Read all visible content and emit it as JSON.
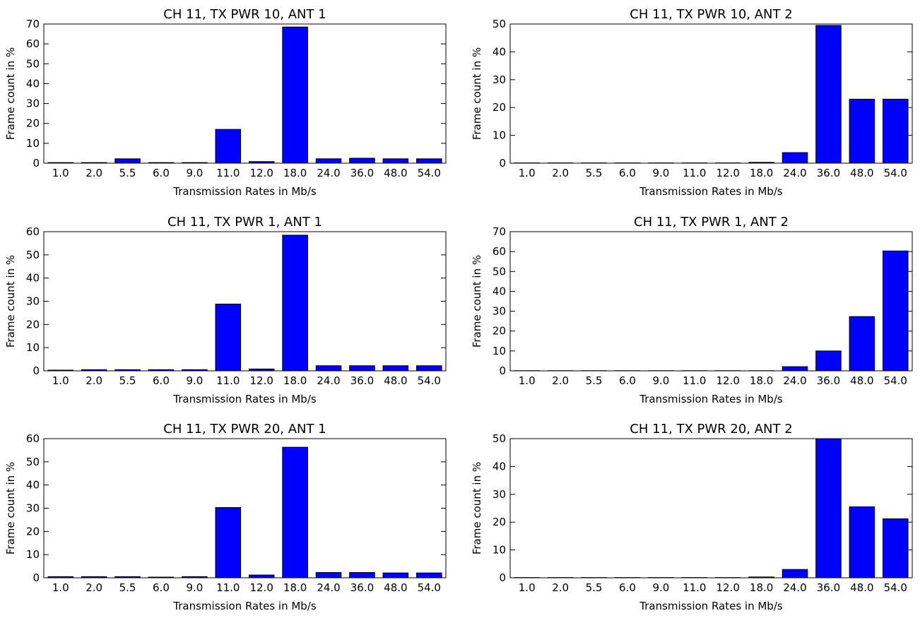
{
  "colors": {
    "bar": "#0000ff",
    "edge": "#000000",
    "background": "#ffffff"
  },
  "chart_data": [
    {
      "type": "bar",
      "title": "CH 11, TX PWR 10, ANT 1",
      "xlabel": "Transmission Rates in Mb/s",
      "ylabel": "Frame count in %",
      "ylim": [
        0,
        70
      ],
      "yticks": [
        0,
        10,
        20,
        30,
        40,
        50,
        60,
        70
      ],
      "categories": [
        "1.0",
        "2.0",
        "5.5",
        "6.0",
        "9.0",
        "11.0",
        "12.0",
        "18.0",
        "24.0",
        "36.0",
        "48.0",
        "54.0"
      ],
      "values": [
        0.3,
        0.3,
        2.2,
        0.3,
        0.3,
        17.0,
        0.8,
        68.5,
        2.2,
        2.5,
        2.2,
        2.2
      ],
      "grid": false
    },
    {
      "type": "bar",
      "title": "CH 11, TX PWR 10, ANT 2",
      "xlabel": "Transmission Rates in Mb/s",
      "ylabel": "Frame count in %",
      "ylim": [
        0,
        50
      ],
      "yticks": [
        0,
        10,
        20,
        30,
        40,
        50
      ],
      "categories": [
        "1.0",
        "2.0",
        "5.5",
        "6.0",
        "9.0",
        "11.0",
        "12.0",
        "18.0",
        "24.0",
        "36.0",
        "48.0",
        "54.0"
      ],
      "values": [
        0.1,
        0.1,
        0.1,
        0.1,
        0.1,
        0.1,
        0.1,
        0.3,
        3.8,
        49.5,
        23.0,
        23.0
      ],
      "grid": false
    },
    {
      "type": "bar",
      "title": "CH 11, TX PWR 1, ANT 1",
      "xlabel": "Transmission Rates in Mb/s",
      "ylabel": "Frame count in %",
      "ylim": [
        0,
        60
      ],
      "yticks": [
        0,
        10,
        20,
        30,
        40,
        50,
        60
      ],
      "categories": [
        "1.0",
        "2.0",
        "5.5",
        "6.0",
        "9.0",
        "11.0",
        "12.0",
        "18.0",
        "24.0",
        "36.0",
        "48.0",
        "54.0"
      ],
      "values": [
        0.3,
        0.5,
        0.5,
        0.5,
        0.5,
        28.8,
        0.8,
        58.5,
        2.2,
        2.2,
        2.2,
        2.2
      ],
      "grid": false
    },
    {
      "type": "bar",
      "title": "CH 11, TX PWR 1, ANT 2",
      "xlabel": "Transmission Rates in Mb/s",
      "ylabel": "Frame count in %",
      "ylim": [
        0,
        70
      ],
      "yticks": [
        0,
        10,
        20,
        30,
        40,
        50,
        60,
        70
      ],
      "categories": [
        "1.0",
        "2.0",
        "5.5",
        "6.0",
        "9.0",
        "11.0",
        "12.0",
        "18.0",
        "24.0",
        "36.0",
        "48.0",
        "54.0"
      ],
      "values": [
        0.1,
        0.1,
        0.1,
        0.1,
        0.1,
        0.1,
        0.1,
        0.1,
        2.1,
        10.0,
        27.3,
        60.3
      ],
      "grid": false
    },
    {
      "type": "bar",
      "title": "CH 11, TX PWR 20, ANT 1",
      "xlabel": "Transmission Rates in Mb/s",
      "ylabel": "Frame count in %",
      "ylim": [
        0,
        60
      ],
      "yticks": [
        0,
        10,
        20,
        30,
        40,
        50,
        60
      ],
      "categories": [
        "1.0",
        "2.0",
        "5.5",
        "6.0",
        "9.0",
        "11.0",
        "12.0",
        "18.0",
        "24.0",
        "36.0",
        "48.0",
        "54.0"
      ],
      "values": [
        0.5,
        0.5,
        0.5,
        0.3,
        0.5,
        30.3,
        1.2,
        56.3,
        2.3,
        2.3,
        2.1,
        2.1
      ],
      "grid": false
    },
    {
      "type": "bar",
      "title": "CH 11, TX PWR 20, ANT 2",
      "xlabel": "Transmission Rates in Mb/s",
      "ylabel": "Frame count in %",
      "ylim": [
        0,
        50
      ],
      "yticks": [
        0,
        10,
        20,
        30,
        40,
        50
      ],
      "categories": [
        "1.0",
        "2.0",
        "5.5",
        "6.0",
        "9.0",
        "11.0",
        "12.0",
        "18.0",
        "24.0",
        "36.0",
        "48.0",
        "54.0"
      ],
      "values": [
        0.1,
        0.1,
        0.1,
        0.1,
        0.1,
        0.1,
        0.1,
        0.3,
        3.0,
        50.0,
        25.5,
        21.2
      ],
      "grid": false
    }
  ]
}
